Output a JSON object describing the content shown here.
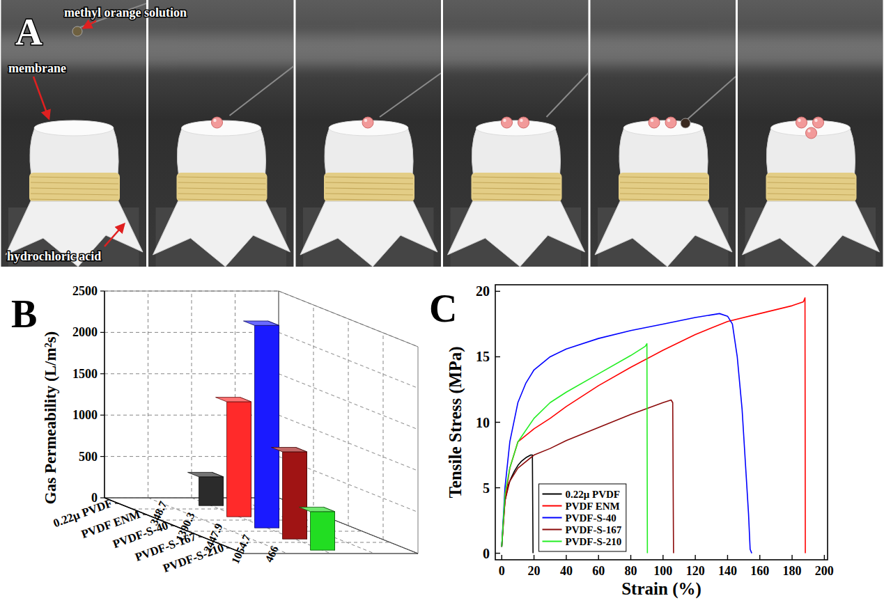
{
  "photo": {
    "panel": "A",
    "labels": [
      "methyl orange solution",
      "membrane",
      "hydrochloric acid"
    ]
  },
  "chart_data": [
    {
      "type": "bar",
      "panel": "B",
      "y_label": "Gas Permeability (L/m²s)",
      "categories": [
        "0.22μ PVDF",
        "PVDF ENM",
        "PVDF-S-40",
        "PVDF-S-167",
        "PVDF-S-210"
      ],
      "values": [
        348.7,
        1390.3,
        2447.9,
        1054.7,
        466
      ],
      "colors": [
        "#2b2b2b",
        "#ff2a2a",
        "#1a1aff",
        "#a01414",
        "#22dd22"
      ],
      "ylim": [
        0,
        2500
      ],
      "yticks": [
        0,
        500,
        1000,
        1500,
        2000,
        2500
      ],
      "grid": true,
      "data_labels": true
    },
    {
      "type": "line",
      "panel": "C",
      "x_label": "Strain (%)",
      "y_label": "Tensile Stress (MPa)",
      "xlim": [
        -4,
        202
      ],
      "ylim": [
        -0.5,
        20.5
      ],
      "xticks": [
        0,
        20,
        40,
        60,
        80,
        100,
        120,
        140,
        160,
        180,
        200
      ],
      "yticks": [
        0,
        5,
        10,
        15,
        20
      ],
      "legend": "lower left",
      "series": [
        {
          "name": "0.22μ PVDF",
          "color": "#000000",
          "x": [
            0,
            1,
            2,
            4,
            6,
            8,
            10,
            12,
            15,
            18,
            19,
            19.4
          ],
          "values": [
            0.5,
            2.5,
            4,
            5.2,
            5.8,
            6.3,
            6.7,
            7,
            7.3,
            7.5,
            7.5,
            0
          ]
        },
        {
          "name": "PVDF ENM",
          "color": "#ff0000",
          "x": [
            0,
            2,
            5,
            10,
            20,
            30,
            40,
            60,
            80,
            100,
            120,
            140,
            160,
            180,
            187,
            188,
            188.2
          ],
          "values": [
            0.5,
            4,
            6.5,
            8.5,
            9.5,
            10.3,
            11.2,
            12.8,
            14.2,
            15.5,
            16.7,
            17.7,
            18.3,
            18.9,
            19.2,
            19.5,
            0
          ]
        },
        {
          "name": "PVDF-S-40",
          "color": "#0000ff",
          "x": [
            0,
            2,
            5,
            10,
            15,
            20,
            30,
            40,
            60,
            80,
            100,
            120,
            135,
            140,
            143,
            146,
            149,
            151,
            153,
            154,
            155
          ],
          "values": [
            0.5,
            5,
            8.5,
            11.5,
            13,
            14,
            15,
            15.6,
            16.4,
            17,
            17.5,
            18,
            18.3,
            18.1,
            17.5,
            15,
            11,
            7,
            3,
            0.3,
            0
          ]
        },
        {
          "name": "PVDF-S-167",
          "color": "#8b0a0a",
          "x": [
            0,
            2,
            5,
            10,
            20,
            30,
            40,
            60,
            80,
            100,
            105,
            106,
            106.5
          ],
          "values": [
            0.5,
            4,
            5.5,
            6.5,
            7.5,
            8,
            8.6,
            9.6,
            10.6,
            11.5,
            11.7,
            11.5,
            0
          ]
        },
        {
          "name": "PVDF-S-210",
          "color": "#22ee22",
          "x": [
            0,
            2,
            5,
            10,
            20,
            30,
            40,
            60,
            80,
            89,
            90,
            90.3
          ],
          "values": [
            0.5,
            4.5,
            6.5,
            8.5,
            10.3,
            11.5,
            12.3,
            13.7,
            15.1,
            15.8,
            16,
            0
          ]
        }
      ]
    }
  ]
}
